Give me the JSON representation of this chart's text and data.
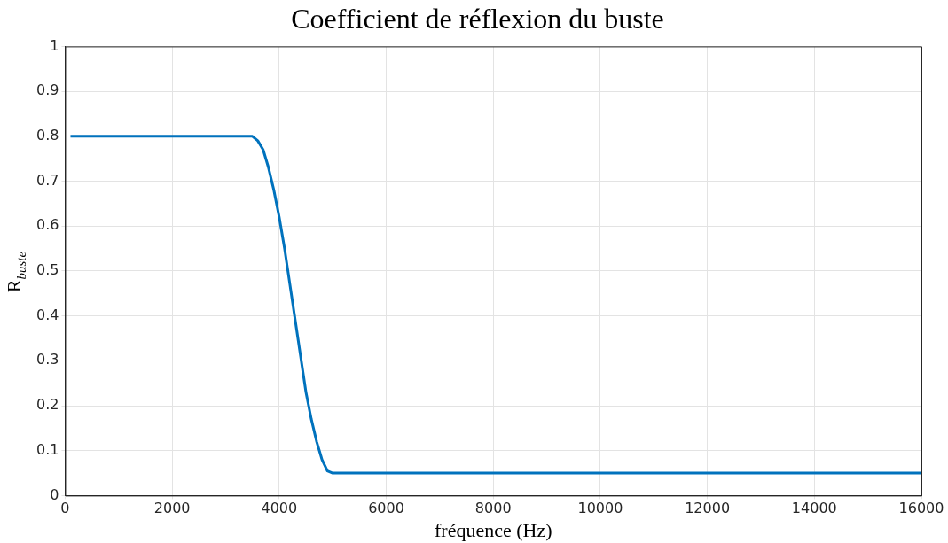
{
  "chart_data": {
    "type": "line",
    "title": "Coefficient de réflexion du buste",
    "xlabel": "fréquence (Hz)",
    "ylabel": "R$_{buste}$",
    "x": [
      100,
      3500,
      3600,
      3700,
      3800,
      3900,
      4000,
      4100,
      4200,
      4300,
      4400,
      4500,
      4600,
      4700,
      4800,
      4900,
      5000,
      16000
    ],
    "series": [
      {
        "color": "#0072bd",
        "values": [
          0.8,
          0.8,
          0.79,
          0.77,
          0.73,
          0.68,
          0.62,
          0.55,
          0.47,
          0.39,
          0.31,
          0.23,
          0.17,
          0.12,
          0.08,
          0.055,
          0.05,
          0.05
        ]
      }
    ],
    "xlim": [
      0,
      16000
    ],
    "xticks": [
      0,
      2000,
      4000,
      6000,
      8000,
      10000,
      12000,
      14000,
      16000
    ],
    "ylim": [
      0,
      1
    ],
    "yticks": [
      0,
      0.1,
      0.2,
      0.3,
      0.4,
      0.5,
      0.6,
      0.7,
      0.8,
      0.9,
      1
    ],
    "grid": true,
    "legend": false,
    "marker": "none",
    "line_style": "solid"
  }
}
